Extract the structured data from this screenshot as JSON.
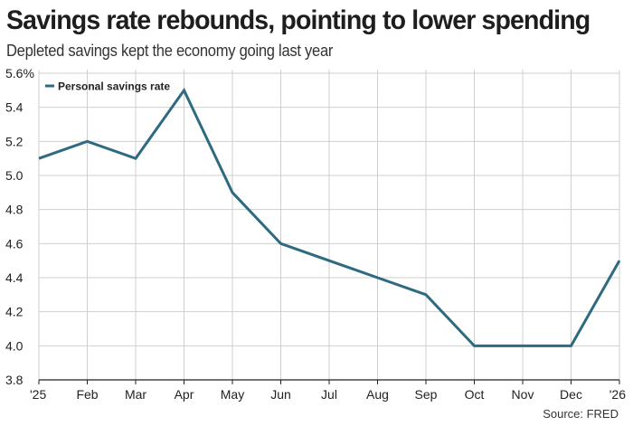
{
  "header": {
    "title": "Savings rate rebounds, pointing to lower spending",
    "subtitle": "Depleted savings kept the economy going last year"
  },
  "footer": {
    "source": "Source: FRED"
  },
  "colors": {
    "line": "#2e6b80",
    "grid": "#cfcfcf",
    "axis": "#222222"
  },
  "chart_data": {
    "type": "line",
    "title": "Savings rate rebounds, pointing to lower spending",
    "subtitle": "Depleted savings kept the economy going last year",
    "xlabel": "",
    "ylabel": "",
    "categories": [
      "'25",
      "Feb",
      "Mar",
      "Apr",
      "May",
      "Jun",
      "Jul",
      "Aug",
      "Sep",
      "Oct",
      "Nov",
      "Dec",
      "'26"
    ],
    "series": [
      {
        "name": "Personal savings rate",
        "values": [
          5.1,
          5.2,
          5.1,
          5.5,
          4.9,
          4.6,
          4.5,
          4.4,
          4.3,
          4.0,
          4.0,
          4.0,
          4.5
        ]
      }
    ],
    "ylim": [
      3.8,
      5.6
    ],
    "yticks": [
      3.8,
      4.0,
      4.2,
      4.4,
      4.6,
      4.8,
      5.0,
      5.2,
      5.4,
      5.6
    ],
    "ytick_labels": [
      "3.8",
      "4.0",
      "4.2",
      "4.4",
      "4.6",
      "4.8",
      "5.0",
      "5.2",
      "5.4",
      "5.6%"
    ],
    "grid": true,
    "legend": "top-left"
  }
}
